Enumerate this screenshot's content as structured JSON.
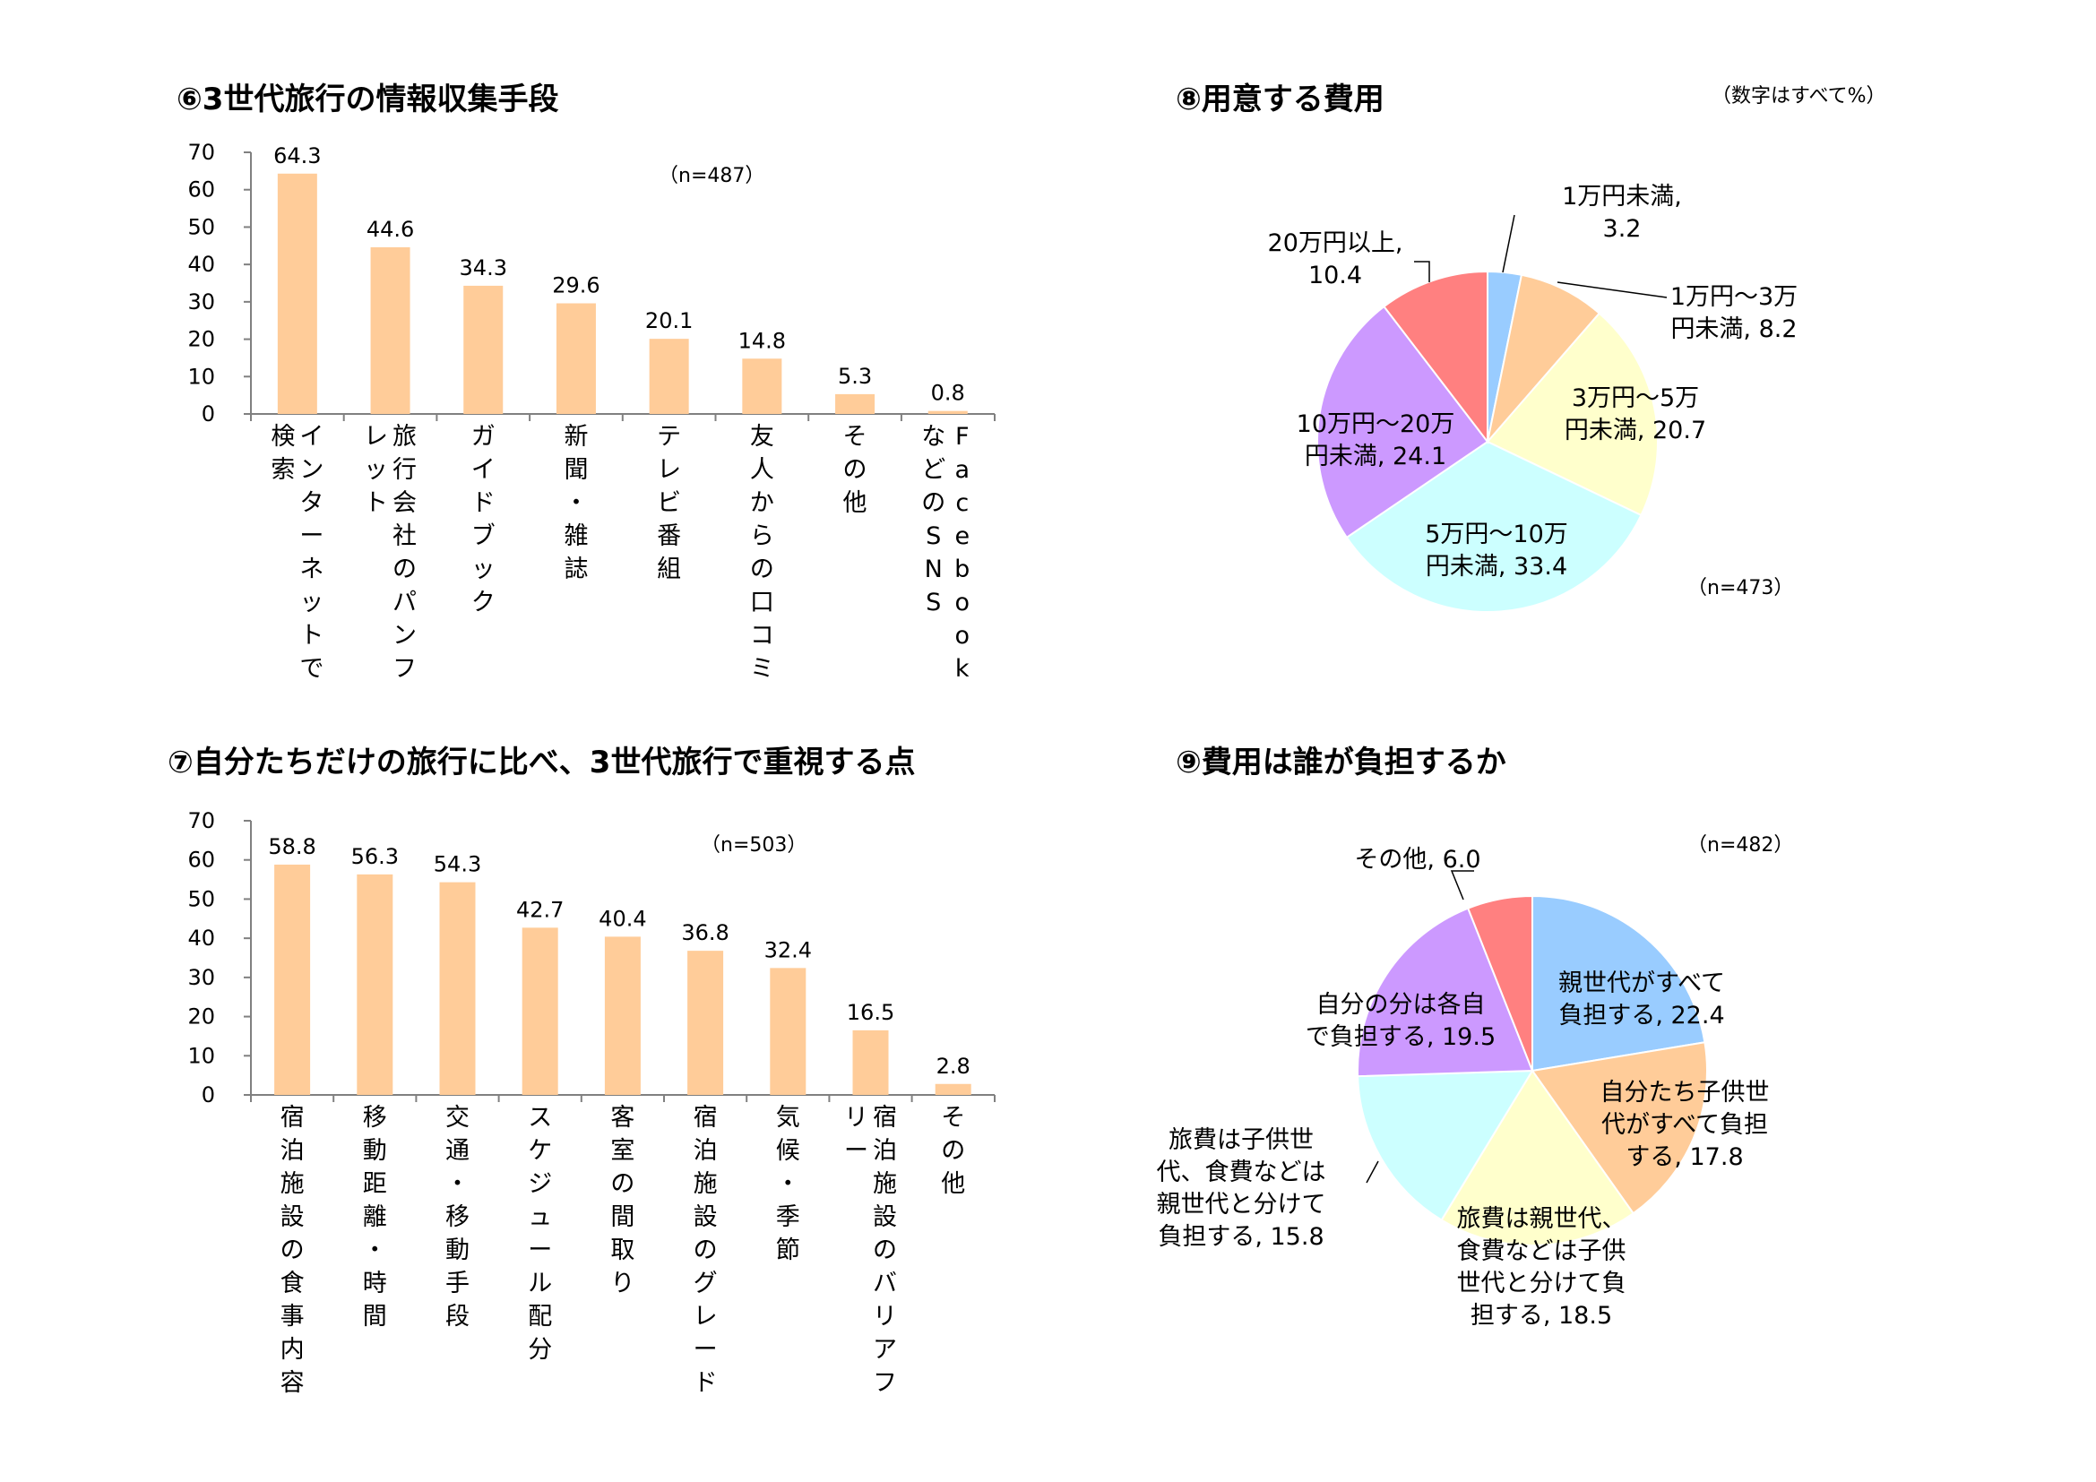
{
  "global_note": "（数字はすべて%）",
  "chart_data": [
    {
      "id": "c6",
      "type": "bar",
      "title": "⑥3世代旅行の情報収集手段",
      "n_label": "（n=487）",
      "categories": [
        "インターネットで検索",
        "旅行会社のパンフレット",
        "ガイドブック",
        "新聞・雑誌",
        "テレビ番組",
        "友人からの口コミ",
        "その他",
        "FacebookなどのSNS"
      ],
      "category_columns": [
        [
          "インターネットで",
          "検索"
        ],
        [
          "旅行会社のパンフ",
          "レット"
        ],
        [
          "ガイドブック"
        ],
        [
          "新聞・雑誌"
        ],
        [
          "テレビ番組"
        ],
        [
          "友人からの口コミ"
        ],
        [
          "その他"
        ],
        [
          "Facebook",
          "などのSNS"
        ]
      ],
      "values": [
        64.3,
        44.6,
        34.3,
        29.6,
        20.1,
        14.8,
        5.3,
        0.8
      ],
      "ylim": [
        0,
        70
      ],
      "yticks": [
        0,
        10,
        20,
        30,
        40,
        50,
        60,
        70
      ],
      "bar_color": "#FFCC99"
    },
    {
      "id": "c7",
      "type": "bar",
      "title": "⑦自分たちだけの旅行に比べ、3世代旅行で重視する点",
      "n_label": "（n=503）",
      "categories": [
        "宿泊施設の食事内容",
        "移動距離・時間",
        "交通・移動手段",
        "スケジュール配分",
        "客室の間取り",
        "宿泊施設のグレード",
        "気候・季節",
        "宿泊施設のバリアフリー",
        "その他"
      ],
      "category_columns": [
        [
          "宿泊施設の食事内容"
        ],
        [
          "移動距離・時間"
        ],
        [
          "交通・移動手段"
        ],
        [
          "スケジュール配分"
        ],
        [
          "客室の間取り"
        ],
        [
          "宿泊施設のグレード"
        ],
        [
          "気候・季節"
        ],
        [
          "宿泊施設のバリアフ",
          "リー"
        ],
        [
          "その他"
        ]
      ],
      "values": [
        58.8,
        56.3,
        54.3,
        42.7,
        40.4,
        36.8,
        32.4,
        16.5,
        2.8
      ],
      "ylim": [
        0,
        70
      ],
      "yticks": [
        0,
        10,
        20,
        30,
        40,
        50,
        60,
        70
      ],
      "bar_color": "#FFCC99"
    },
    {
      "id": "c8",
      "type": "pie",
      "title": "⑧用意する費用",
      "n_label": "（n=473）",
      "slices": [
        {
          "label_lines": [
            "1万円未満,",
            "3.2"
          ],
          "value": 3.2,
          "color": "#99CCFF"
        },
        {
          "label_lines": [
            "1万円～3万",
            "円未満, 8.2"
          ],
          "value": 8.2,
          "color": "#FFCC99"
        },
        {
          "label_lines": [
            "3万円～5万",
            "円未満, 20.7"
          ],
          "value": 20.7,
          "color": "#FFFFCC"
        },
        {
          "label_lines": [
            "5万円～10万",
            "円未満, 33.4"
          ],
          "value": 33.4,
          "color": "#CCFFFF"
        },
        {
          "label_lines": [
            "10万円～20万",
            "円未満, 24.1"
          ],
          "value": 24.1,
          "color": "#CC99FF"
        },
        {
          "label_lines": [
            "20万円以上,",
            "10.4"
          ],
          "value": 10.4,
          "color": "#FF8080"
        }
      ]
    },
    {
      "id": "c9",
      "type": "pie",
      "title": "⑨費用は誰が負担するか",
      "n_label": "（n=482）",
      "slices": [
        {
          "label_lines": [
            "親世代がすべて",
            "負担する, 22.4"
          ],
          "value": 22.4,
          "color": "#99CCFF"
        },
        {
          "label_lines": [
            "自分たち子供世",
            "代がすべて負担",
            "する, 17.8"
          ],
          "value": 17.8,
          "color": "#FFCC99"
        },
        {
          "label_lines": [
            "旅費は親世代、",
            "食費などは子供",
            "世代と分けて負",
            "担する, 18.5"
          ],
          "value": 18.5,
          "color": "#FFFFCC"
        },
        {
          "label_lines": [
            "旅費は子供世",
            "代、食費などは",
            "親世代と分けて",
            "負担する, 15.8"
          ],
          "value": 15.8,
          "color": "#CCFFFF"
        },
        {
          "label_lines": [
            "自分の分は各自",
            "で負担する, 19.5"
          ],
          "value": 19.5,
          "color": "#CC99FF"
        },
        {
          "label_lines": [
            "その他, 6.0"
          ],
          "value": 6.0,
          "color": "#FF8080"
        }
      ]
    }
  ]
}
